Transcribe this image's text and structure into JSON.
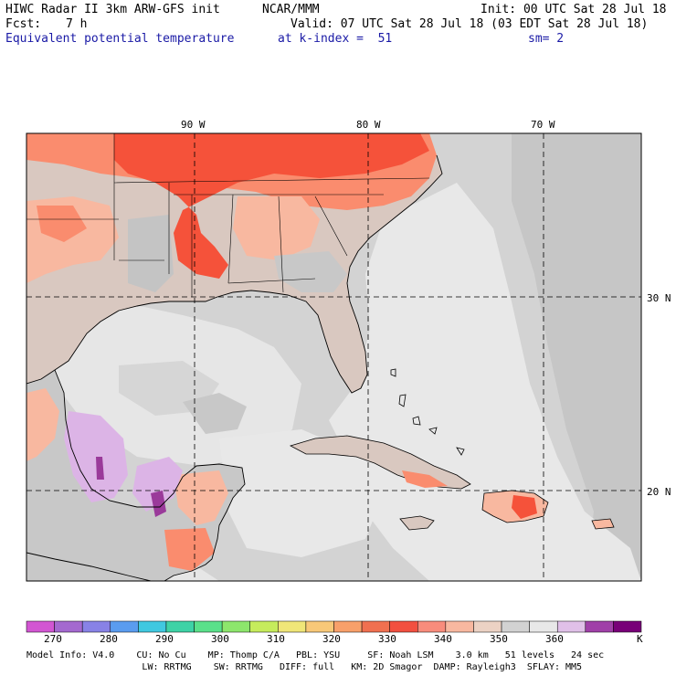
{
  "header": {
    "model_title": "HIWC Radar II 3km ARW-GFS init",
    "organization": "NCAR/MMM",
    "init_time": "Init: 00 UTC Sat 28 Jul 18",
    "forecast_label": "Fcst:",
    "forecast_hours": "7 h",
    "valid_time": "Valid: 07 UTC Sat 28 Jul 18 (03 EDT Sat 28 Jul 18)",
    "field_name": "Equivalent potential temperature",
    "level": "at k-index =  51",
    "smoothing": "sm= 2"
  },
  "map": {
    "longitude_labels": [
      "90 W",
      "80 W",
      "70 W"
    ],
    "latitude_labels": [
      "30 N",
      "20 N"
    ],
    "colors": {
      "ocean_light": "#e8e8e8",
      "ocean_mid": "#d3d3d3",
      "gray_dark": "#b4b4b4",
      "land_tan": "#d9c8c0",
      "salmon": "#fa8c6e",
      "red": "#f5523a",
      "lavender": "#dcb4e6",
      "purple": "#9a3a9a",
      "coast": "#000000"
    }
  },
  "colorbar": {
    "unit": "K",
    "tick_labels": [
      "270",
      "280",
      "290",
      "300",
      "310",
      "320",
      "330",
      "340",
      "350",
      "360"
    ],
    "colors": [
      "#d256d2",
      "#a469cf",
      "#8882e6",
      "#5a9cef",
      "#40c8e0",
      "#3ed2a6",
      "#5ae08a",
      "#8de66c",
      "#c6ec5c",
      "#f0e678",
      "#f8c878",
      "#f8a06a",
      "#f07050",
      "#f25040",
      "#f88c7c",
      "#f8b8a0",
      "#ecd2c4",
      "#d2d2d2",
      "#e8e8e8",
      "#e0c0e8",
      "#a040a8",
      "#780078"
    ]
  },
  "model_info": {
    "line1": "Model Info: V4.0    CU: No Cu    MP: Thomp C/A   PBL: YSU     SF: Noah LSM    3.0 km   51 levels   24 sec",
    "line2": "                     LW: RRTMG    SW: RRTMG   DIFF: full   KM: 2D Smagor  DAMP: Rayleigh3  SFLAY: MM5"
  }
}
